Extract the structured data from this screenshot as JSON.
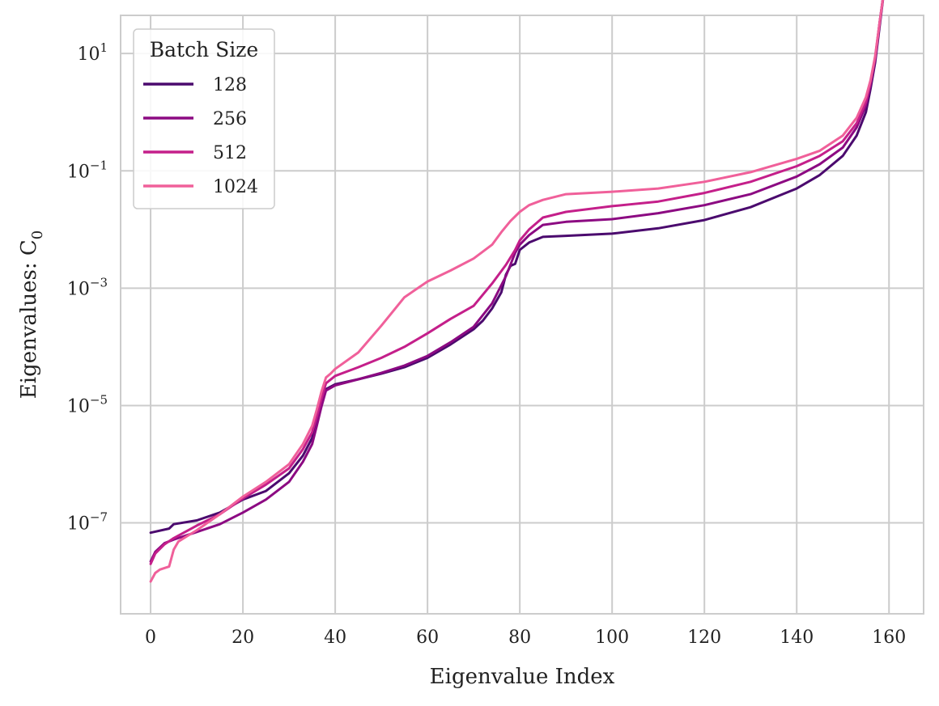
{
  "chart_data": {
    "type": "line",
    "xlabel": "Eigenvalue Index",
    "ylabel": "Eigenvalues:  C",
    "ylabel_subscript": "0",
    "yscale": "log",
    "xlim": [
      -6.5,
      167.5
    ],
    "ylim_log10": [
      -8.55,
      1.65
    ],
    "grid": true,
    "legend": {
      "title": "Batch Size",
      "placement": "top-left"
    },
    "x_ticks": [
      {
        "v": 0,
        "label": "0"
      },
      {
        "v": 20,
        "label": "20"
      },
      {
        "v": 40,
        "label": "40"
      },
      {
        "v": 60,
        "label": "60"
      },
      {
        "v": 80,
        "label": "80"
      },
      {
        "v": 100,
        "label": "100"
      },
      {
        "v": 120,
        "label": "120"
      },
      {
        "v": 140,
        "label": "140"
      },
      {
        "v": 160,
        "label": "160"
      }
    ],
    "y_ticks": [
      {
        "exp": 1,
        "base": "10",
        "sup": "1"
      },
      {
        "exp": -1,
        "base": "10",
        "sup": "−1"
      },
      {
        "exp": -3,
        "base": "10",
        "sup": "−3"
      },
      {
        "exp": -5,
        "base": "10",
        "sup": "−5"
      },
      {
        "exp": -7,
        "base": "10",
        "sup": "−7"
      }
    ],
    "series": [
      {
        "name": "128",
        "color": "#4b0a6e",
        "x": [
          0,
          4,
          5,
          10,
          15,
          20,
          25,
          30,
          33,
          35,
          36,
          37,
          38,
          40,
          45,
          50,
          55,
          60,
          65,
          70,
          72,
          74,
          76,
          77,
          78,
          79,
          80,
          82,
          85,
          90,
          100,
          110,
          120,
          130,
          140,
          145,
          150,
          153,
          155,
          156,
          157,
          158,
          159
        ],
        "y": [
          6.8e-08,
          8e-08,
          9.5e-08,
          1.1e-07,
          1.5e-07,
          2.5e-07,
          3.5e-07,
          7e-07,
          1.4e-06,
          2.8e-06,
          5.5e-06,
          1.1e-05,
          1.9e-05,
          2.3e-05,
          2.8e-05,
          3.5e-05,
          4.5e-05,
          6.5e-05,
          0.00011,
          0.0002,
          0.00028,
          0.00045,
          0.00085,
          0.0017,
          0.0024,
          0.0026,
          0.0045,
          0.006,
          0.0075,
          0.0078,
          0.0085,
          0.0105,
          0.0145,
          0.024,
          0.05,
          0.085,
          0.18,
          0.4,
          1.0,
          2.5,
          7.0,
          30,
          130
        ]
      },
      {
        "name": "256",
        "color": "#8c0a82",
        "x": [
          0,
          1,
          3,
          5,
          10,
          15,
          20,
          25,
          30,
          33,
          35,
          36,
          37,
          38,
          40,
          45,
          50,
          55,
          60,
          65,
          70,
          74,
          77,
          79,
          80,
          82,
          85,
          90,
          100,
          110,
          120,
          130,
          140,
          145,
          150,
          153,
          155,
          156,
          157,
          158,
          159
        ],
        "y": [
          2.2e-08,
          3.2e-08,
          4.5e-08,
          5.2e-08,
          7e-08,
          9.5e-08,
          1.5e-07,
          2.5e-07,
          5e-07,
          1.1e-06,
          2.2e-06,
          4.5e-06,
          9.5e-06,
          1.8e-05,
          2.2e-05,
          2.8e-05,
          3.6e-05,
          4.8e-05,
          7e-05,
          0.00012,
          0.00022,
          0.00055,
          0.0016,
          0.004,
          0.0055,
          0.008,
          0.012,
          0.0135,
          0.015,
          0.019,
          0.026,
          0.04,
          0.08,
          0.13,
          0.25,
          0.55,
          1.3,
          3.0,
          8.0,
          35,
          130
        ]
      },
      {
        "name": "512",
        "color": "#c41f8a",
        "x": [
          0,
          1,
          3,
          5,
          10,
          15,
          20,
          25,
          30,
          33,
          35,
          36,
          37,
          38,
          40,
          45,
          50,
          55,
          60,
          65,
          70,
          74,
          77,
          79,
          80,
          82,
          85,
          90,
          100,
          110,
          120,
          130,
          140,
          145,
          150,
          153,
          155,
          156,
          157,
          158,
          159
        ],
        "y": [
          2e-08,
          3e-08,
          4.3e-08,
          5.5e-08,
          9e-08,
          1.4e-07,
          2.6e-07,
          4.5e-07,
          8.5e-07,
          1.8e-06,
          3.5e-06,
          6.5e-06,
          1.3e-05,
          2.4e-05,
          3.2e-05,
          4.5e-05,
          6.5e-05,
          0.0001,
          0.00017,
          0.0003,
          0.0005,
          0.0012,
          0.0025,
          0.0045,
          0.0065,
          0.01,
          0.016,
          0.02,
          0.025,
          0.03,
          0.042,
          0.065,
          0.12,
          0.18,
          0.32,
          0.65,
          1.5,
          3.2,
          8.5,
          35,
          130
        ]
      },
      {
        "name": "1024",
        "color": "#f0609a",
        "x": [
          0,
          1,
          2,
          4,
          5,
          6,
          8,
          10,
          15,
          20,
          25,
          30,
          33,
          35,
          36,
          37,
          38,
          39,
          40,
          45,
          50,
          55,
          60,
          65,
          70,
          74,
          76,
          78,
          80,
          82,
          85,
          90,
          100,
          110,
          120,
          130,
          140,
          145,
          150,
          153,
          155,
          156,
          157,
          158,
          159
        ],
        "y": [
          1e-08,
          1.4e-08,
          1.6e-08,
          1.8e-08,
          3.5e-08,
          4.8e-08,
          6e-08,
          7.5e-08,
          1.4e-07,
          2.8e-07,
          5e-07,
          1e-06,
          2.2e-06,
          4.5e-06,
          8.5e-06,
          1.7e-05,
          3e-05,
          3.5e-05,
          4.2e-05,
          8e-05,
          0.00023,
          0.0007,
          0.0013,
          0.002,
          0.0032,
          0.0055,
          0.009,
          0.014,
          0.02,
          0.026,
          0.032,
          0.04,
          0.044,
          0.05,
          0.065,
          0.095,
          0.16,
          0.22,
          0.4,
          0.8,
          1.8,
          3.5,
          9.0,
          35,
          130
        ]
      }
    ]
  }
}
